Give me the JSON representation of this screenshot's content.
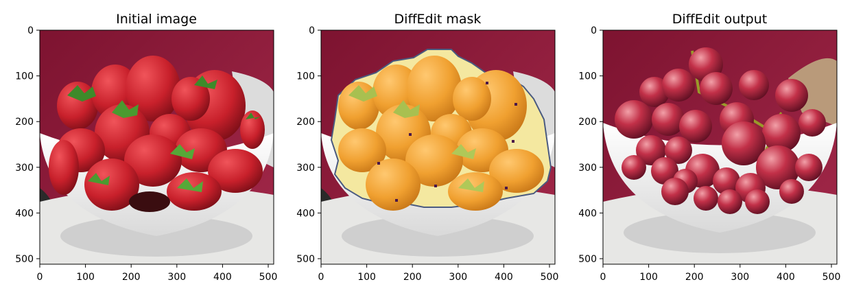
{
  "panels": [
    {
      "title": "Initial image",
      "subject": "strawberries",
      "x_ticks": [
        "0",
        "100",
        "200",
        "300",
        "400",
        "500"
      ],
      "y_ticks": [
        "0",
        "100",
        "200",
        "300",
        "400",
        "500"
      ]
    },
    {
      "title": "DiffEdit mask",
      "subject": "strawberries-with-mask",
      "x_ticks": [
        "0",
        "100",
        "200",
        "300",
        "400",
        "500"
      ],
      "y_ticks": [
        "0",
        "100",
        "200",
        "300",
        "400",
        "500"
      ]
    },
    {
      "title": "DiffEdit output",
      "subject": "grapes",
      "x_ticks": [
        "0",
        "100",
        "200",
        "300",
        "400",
        "500"
      ],
      "y_ticks": [
        "0",
        "100",
        "200",
        "300",
        "400",
        "500"
      ]
    }
  ],
  "axis_range": [
    0,
    512
  ],
  "colors": {
    "background_wall": "#8f1d3a",
    "bowl": "#f4f4f2",
    "cloth": "#e7e7e5",
    "strawberry": "#c8202b",
    "mask_overlay": "#f5a830",
    "grape": "#b82840"
  }
}
